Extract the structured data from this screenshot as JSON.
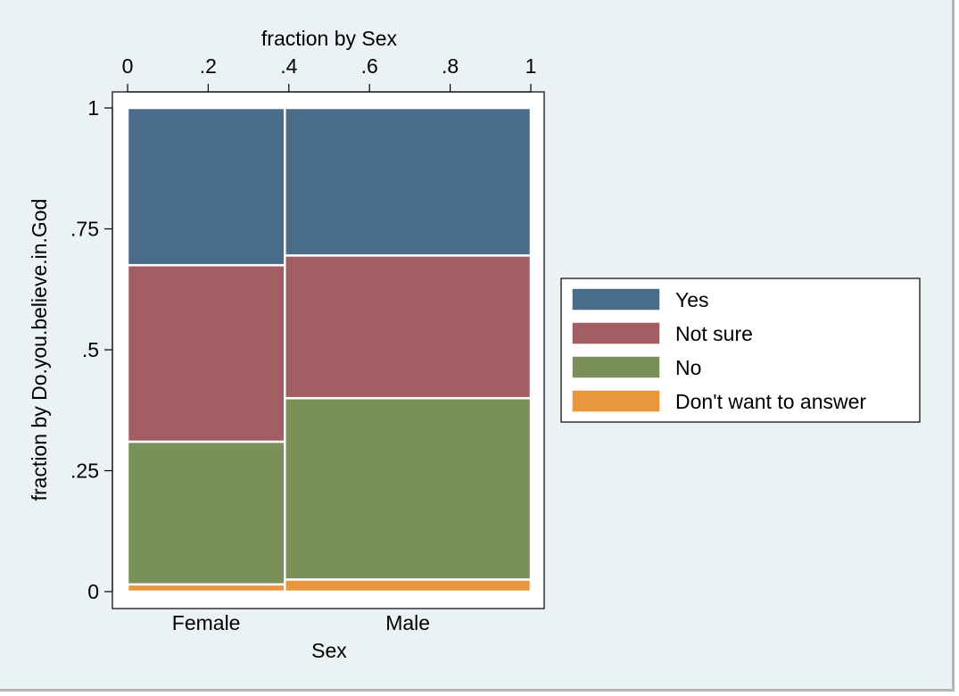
{
  "chart_data": {
    "type": "mosaic",
    "top_axis_title": "fraction by Sex",
    "top_ticks": [
      {
        "value": 0,
        "label": "0"
      },
      {
        "value": 0.2,
        "label": ".2"
      },
      {
        "value": 0.4,
        "label": ".4"
      },
      {
        "value": 0.6,
        "label": ".6"
      },
      {
        "value": 0.8,
        "label": ".8"
      },
      {
        "value": 1,
        "label": "1"
      }
    ],
    "ylabel": "fraction by Do.you.believe.in.God",
    "y_ticks": [
      {
        "value": 0,
        "label": "0"
      },
      {
        "value": 0.25,
        "label": ".25"
      },
      {
        "value": 0.5,
        "label": ".5"
      },
      {
        "value": 0.75,
        "label": ".75"
      },
      {
        "value": 1,
        "label": "1"
      }
    ],
    "xlabel": "Sex",
    "xlim": [
      0,
      1
    ],
    "ylim": [
      0,
      1
    ],
    "categories": [
      "Female",
      "Male"
    ],
    "category_widths": [
      0.39,
      0.61
    ],
    "series": [
      {
        "name": "Don't want to answer",
        "color": "#e8973f",
        "values": [
          0.015,
          0.025
        ]
      },
      {
        "name": "No",
        "color": "#799058",
        "values": [
          0.295,
          0.375
        ]
      },
      {
        "name": "Not sure",
        "color": "#a35e63",
        "values": [
          0.365,
          0.295
        ]
      },
      {
        "name": "Yes",
        "color": "#496c8b",
        "values": [
          0.325,
          0.305
        ]
      }
    ],
    "legend_order": [
      "Yes",
      "Not sure",
      "No",
      "Don't want to answer"
    ],
    "legend_position": "right",
    "grid": false
  }
}
